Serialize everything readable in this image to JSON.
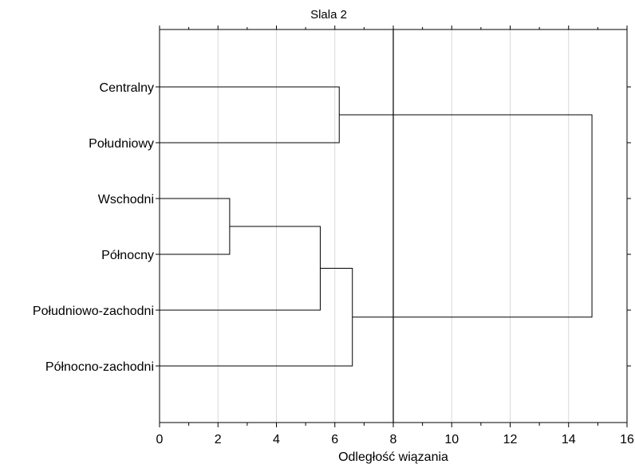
{
  "chart_data": {
    "type": "dendrogram",
    "title": "Slala 2",
    "xlabel": "Odległość wiązania",
    "ylabel": "",
    "xlim": [
      0,
      16
    ],
    "xticks": [
      "0",
      "2",
      "4",
      "6",
      "8",
      "10",
      "12",
      "14",
      "16"
    ],
    "grid": true,
    "cut_line_x": 8,
    "leaves": [
      "Centralny",
      "Południowy",
      "Wschodni",
      "Północny",
      "Południowo-zachodni",
      "Północno-zachodni"
    ],
    "merges": [
      {
        "id": "m1",
        "left": "Wschodni",
        "right": "Północny",
        "distance": 2.4
      },
      {
        "id": "m2",
        "left": "m1",
        "right": "Południowo-zachodni",
        "distance": 5.5
      },
      {
        "id": "m3",
        "left": "Centralny",
        "right": "Południowy",
        "distance": 6.15
      },
      {
        "id": "m4",
        "left": "m2",
        "right": "Północno-zachodni",
        "distance": 6.6
      },
      {
        "id": "m5",
        "left": "m3",
        "right": "m4",
        "distance": 14.8
      }
    ]
  }
}
